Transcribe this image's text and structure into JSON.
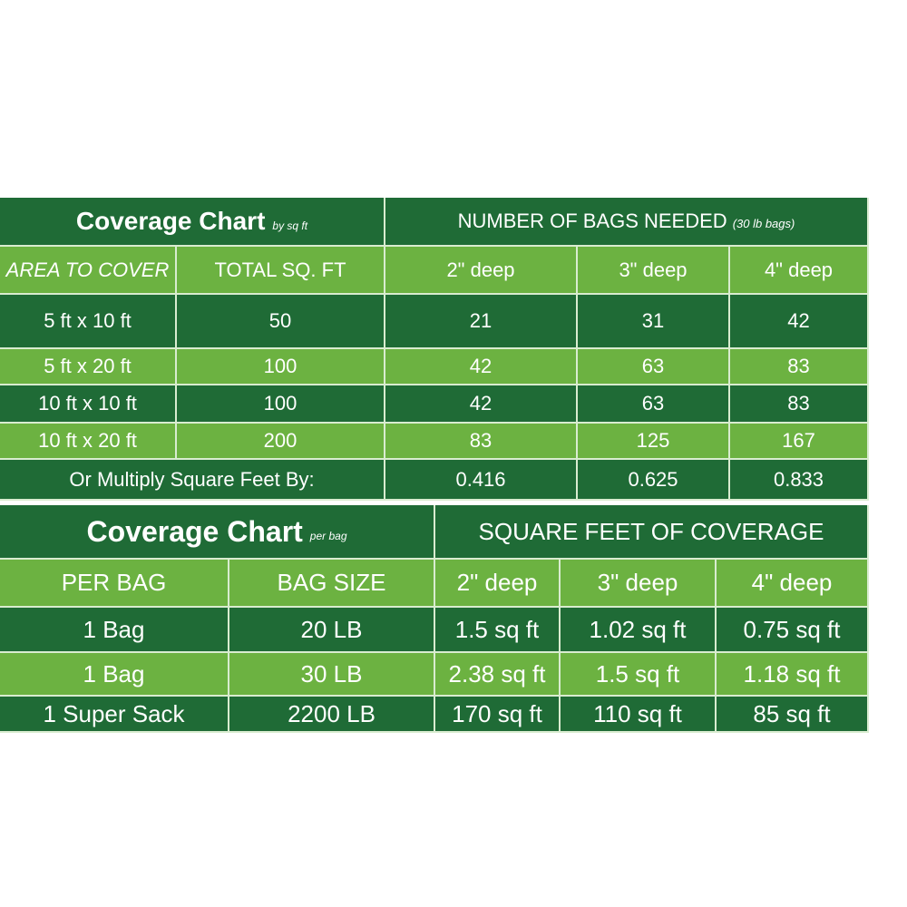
{
  "tables": [
    {
      "title": "Coverage Chart",
      "title_note": "by sq ft",
      "group_header": "NUMBER OF BAGS NEEDED",
      "group_note": "(30 lb bags)",
      "columns": [
        "AREA TO COVER",
        "TOTAL SQ. FT",
        "2\" deep",
        "3\" deep",
        "4\" deep"
      ],
      "rows": [
        [
          "5 ft x 10 ft",
          "50",
          "21",
          "31",
          "42"
        ],
        [
          "5 ft x 20 ft",
          "100",
          "42",
          "63",
          "83"
        ],
        [
          "10 ft x 10 ft",
          "100",
          "42",
          "63",
          "83"
        ],
        [
          "10 ft x 20 ft",
          "200",
          "83",
          "125",
          "167"
        ]
      ],
      "footer": {
        "label": "Or Multiply Square Feet By:",
        "values": [
          "0.416",
          "0.625",
          "0.833"
        ]
      }
    },
    {
      "title": "Coverage Chart",
      "title_note": "per bag",
      "group_header": "SQUARE FEET OF COVERAGE",
      "columns": [
        "PER BAG",
        "BAG SIZE",
        "2\" deep",
        "3\" deep",
        "4\" deep"
      ],
      "rows": [
        [
          "1 Bag",
          "20 LB",
          "1.5 sq ft",
          "1.02 sq ft",
          "0.75 sq ft"
        ],
        [
          "1 Bag",
          "30 LB",
          "2.38 sq ft",
          "1.5 sq ft",
          "1.18 sq ft"
        ],
        [
          "1 Super Sack",
          "2200 LB",
          "170 sq ft",
          "110 sq ft",
          "85 sq ft"
        ]
      ]
    }
  ]
}
